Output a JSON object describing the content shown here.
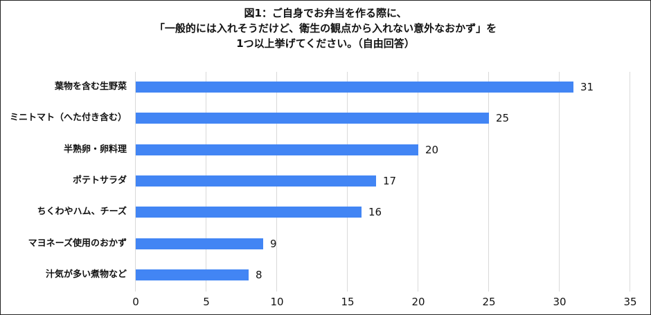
{
  "chart_data": {
    "type": "bar",
    "orientation": "horizontal",
    "title": "図1：ご自身でお弁当を作る際に、「一般的には入れそうだけど、衛生の観点から入れない意外なおかず」を1つ以上挙げてください。（自由回答）",
    "title_lines": [
      "図1：ご自身でお弁当を作る際に、",
      "「一般的には入れそうだけど、衛生の観点から入れない意外なおかず」を",
      "1つ以上挙げてください。（自由回答）"
    ],
    "categories": [
      "葉物を含む生野菜",
      "ミニトマト（へた付き含む）",
      "半熟卵・卵料理",
      "ポテトサラダ",
      "ちくわやハム、チーズ",
      "マヨネーズ使用のおかず",
      "汁気が多い煮物など"
    ],
    "values": [
      31,
      25,
      20,
      17,
      16,
      9,
      8
    ],
    "value_labels": [
      "31",
      "25",
      "20",
      "17",
      "16",
      "9",
      "8"
    ],
    "xlabel": "",
    "ylabel": "",
    "xlim": [
      0,
      35
    ],
    "x_ticks": [
      "0",
      "5",
      "10",
      "15",
      "20",
      "25",
      "30",
      "35"
    ],
    "grid": true,
    "legend": "none",
    "bar_color": "#4285f4"
  }
}
